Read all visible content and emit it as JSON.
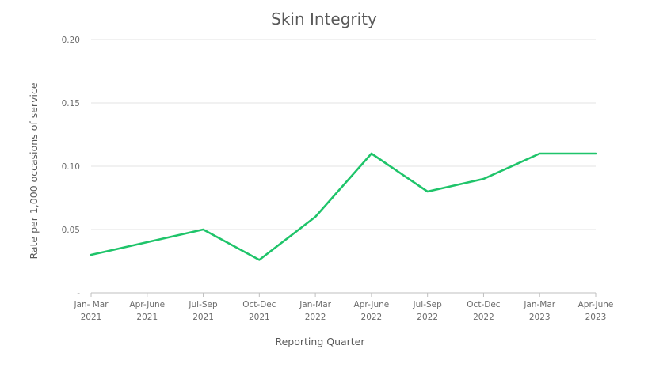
{
  "chart_data": {
    "type": "line",
    "title": "Skin Integrity",
    "xlabel": "Reporting Quarter",
    "ylabel": "Rate per 1,000 occasions of service",
    "categories": [
      [
        "Jan- Mar",
        "2021"
      ],
      [
        "Apr-June",
        "2021"
      ],
      [
        "Jul-Sep",
        "2021"
      ],
      [
        "Oct-Dec",
        "2021"
      ],
      [
        "Jan-Mar",
        "2022"
      ],
      [
        "Apr-June",
        "2022"
      ],
      [
        "Jul-Sep",
        "2022"
      ],
      [
        "Oct-Dec",
        "2022"
      ],
      [
        "Jan-Mar",
        "2023"
      ],
      [
        "Apr-June",
        "2023"
      ]
    ],
    "yticks": [
      {
        "value": 0,
        "label": "-"
      },
      {
        "value": 0.05,
        "label": "0.05"
      },
      {
        "value": 0.1,
        "label": "0.10"
      },
      {
        "value": 0.15,
        "label": "0.15"
      },
      {
        "value": 0.2,
        "label": "0.20"
      }
    ],
    "ylim": [
      0,
      0.2
    ],
    "grid": true,
    "legend": "none",
    "series": [
      {
        "color": "#1fc46a",
        "values": [
          0.03,
          0.04,
          0.05,
          0.026,
          0.06,
          0.11,
          0.08,
          0.09,
          0.11,
          0.11
        ]
      }
    ]
  }
}
